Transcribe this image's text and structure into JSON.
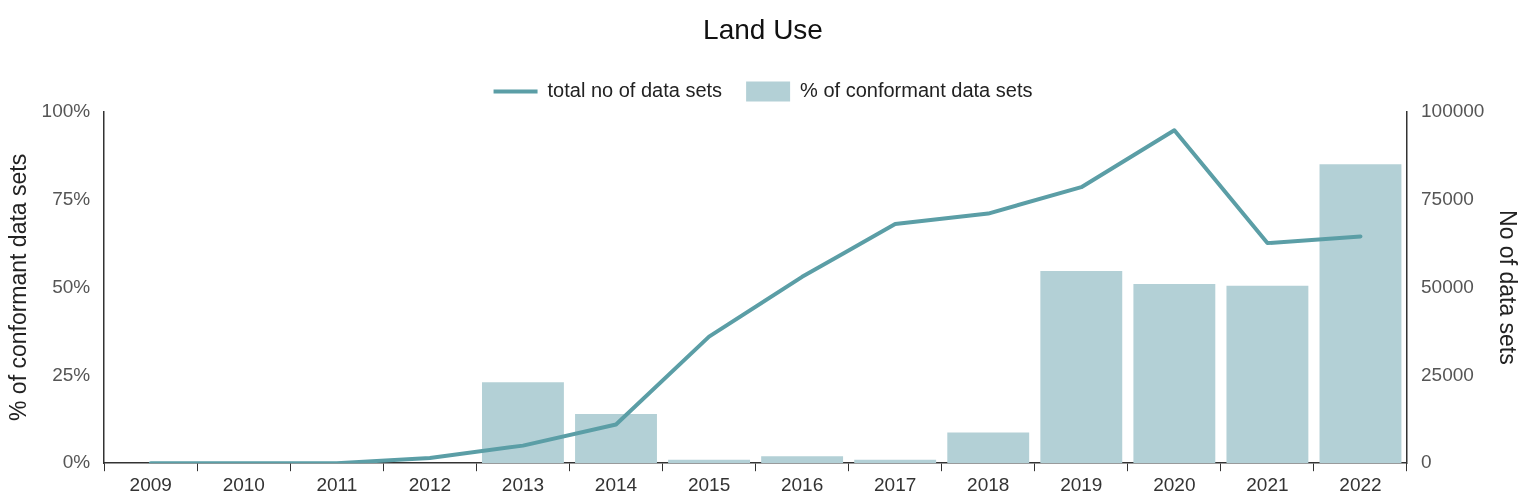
{
  "chart_data": {
    "type": "bar",
    "title": "Land Use",
    "ylabel": "% of conformant data sets",
    "y2label": "No of data sets",
    "categories": [
      "2009",
      "2010",
      "2011",
      "2012",
      "2013",
      "2014",
      "2015",
      "2016",
      "2017",
      "2018",
      "2019",
      "2020",
      "2021",
      "2022"
    ],
    "series": [
      {
        "name": "total no of data sets",
        "type": "line",
        "axis": "y2",
        "color": "#5b9ea6",
        "values": [
          0,
          0,
          0,
          1500,
          5000,
          11000,
          36000,
          53000,
          68000,
          71000,
          78500,
          94700,
          62600,
          64500
        ]
      },
      {
        "name": "% of conformant data sets",
        "color": "#b3d0d6",
        "values": [
          null,
          null,
          null,
          null,
          23,
          14,
          1,
          2,
          1,
          8.7,
          54.7,
          51,
          50.5,
          85
        ]
      }
    ],
    "ylim": [
      0,
      100
    ],
    "yticks": [
      {
        "value": 0,
        "label": "0%"
      },
      {
        "value": 25,
        "label": "25%"
      },
      {
        "value": 50,
        "label": "50%"
      },
      {
        "value": 75,
        "label": "75%"
      },
      {
        "value": 100,
        "label": "100%"
      }
    ],
    "y2lim": [
      0,
      100000
    ],
    "y2ticks": [
      0,
      25000,
      50000,
      75000,
      100000
    ],
    "grid": false,
    "legend": "top",
    "marker": "none",
    "line_style": "solid"
  }
}
